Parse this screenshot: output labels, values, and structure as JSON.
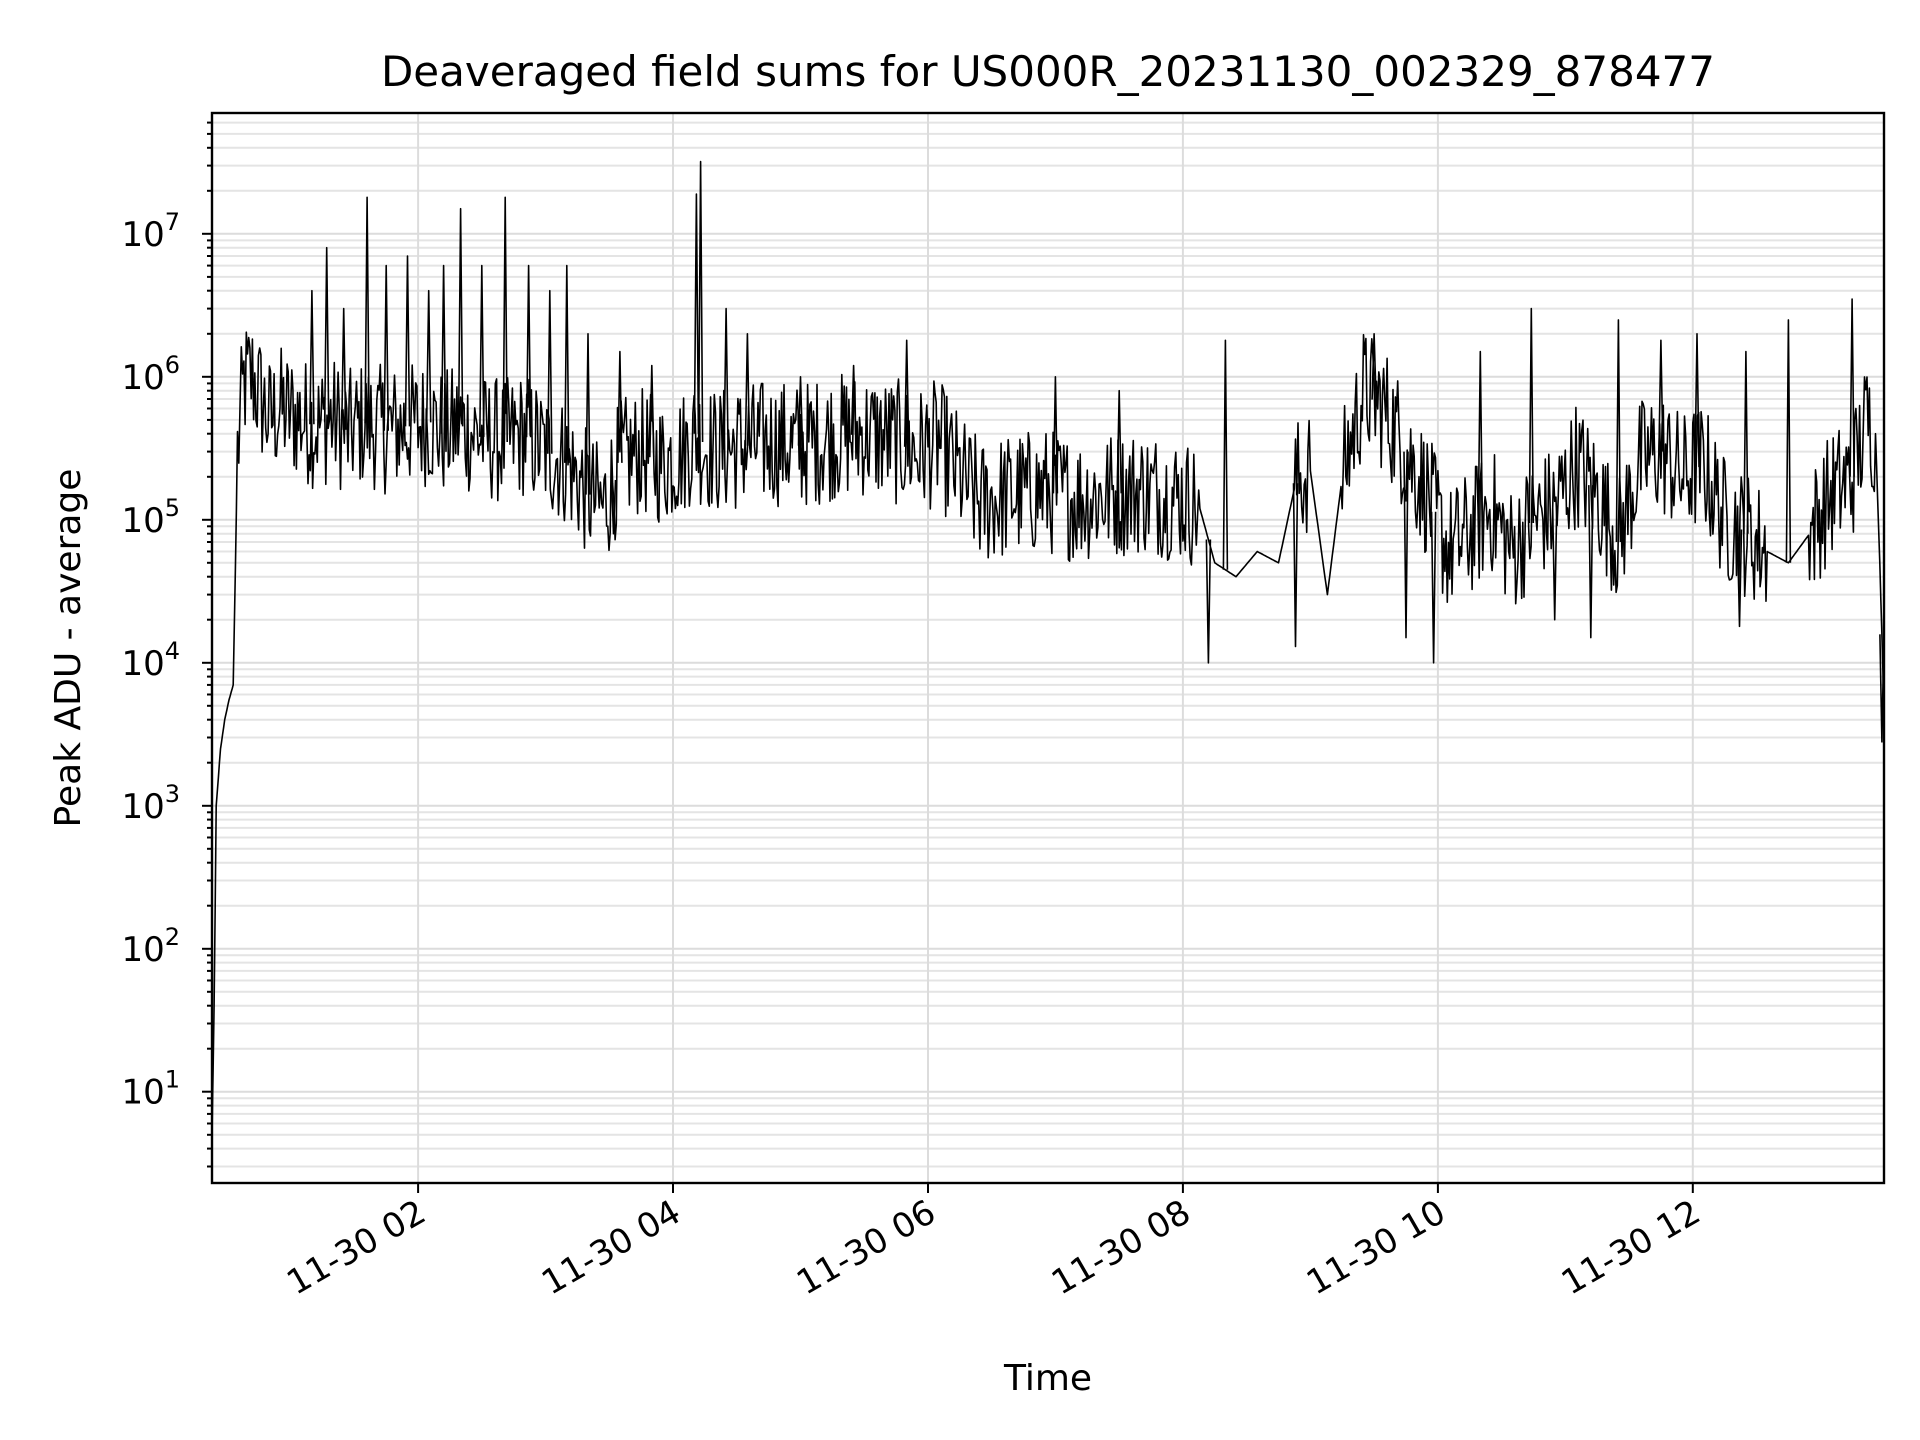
{
  "chart_data": {
    "type": "line",
    "title": "Deaveraged field sums for US000R_20231130_002329_878477",
    "xlabel": "Time",
    "ylabel": "Peak ADU - average",
    "y_scale": "log",
    "ylim": [
      2.3,
      70000000
    ],
    "xlim": [
      "11-30 00:23",
      "11-30 13:30"
    ],
    "x_ticks": [
      {
        "label": "11-30 02",
        "value": "11-30 02:00"
      },
      {
        "label": "11-30 04",
        "value": "11-30 04:00"
      },
      {
        "label": "11-30 06",
        "value": "11-30 06:00"
      },
      {
        "label": "11-30 08",
        "value": "11-30 08:00"
      },
      {
        "label": "11-30 10",
        "value": "11-30 10:00"
      },
      {
        "label": "11-30 12",
        "value": "11-30 12:00"
      }
    ],
    "y_ticks": [
      {
        "base": "10",
        "exp": "1",
        "value": 10
      },
      {
        "base": "10",
        "exp": "2",
        "value": 100
      },
      {
        "base": "10",
        "exp": "3",
        "value": 1000
      },
      {
        "base": "10",
        "exp": "4",
        "value": 10000
      },
      {
        "base": "10",
        "exp": "5",
        "value": 100000
      },
      {
        "base": "10",
        "exp": "6",
        "value": 1000000
      },
      {
        "base": "10",
        "exp": "7",
        "value": 10000000
      }
    ],
    "grid": true,
    "series": [
      {
        "color": "#000000",
        "x": [
          "11-30 00:23",
          "11-30 00:24",
          "11-30 00:25",
          "11-30 00:27",
          "11-30 00:29",
          "11-30 00:31",
          "11-30 00:33",
          "11-30 00:35",
          "11-30 00:38",
          "11-30 00:42",
          "11-30 00:46",
          "11-30 00:50",
          "11-30 00:55",
          "11-30 01:00",
          "11-30 01:06",
          "11-30 01:12",
          "11-30 01:20",
          "11-30 01:27",
          "11-30 01:35",
          "11-30 01:45",
          "11-30 01:55",
          "11-30 02:05",
          "11-30 02:12",
          "11-30 02:20",
          "11-30 02:30",
          "11-30 02:41",
          "11-30 02:50",
          "11-30 03:00",
          "11-30 03:10",
          "11-30 03:20",
          "11-30 03:27",
          "11-30 03:35",
          "11-30 03:45",
          "11-30 03:55",
          "11-30 04:05",
          "11-30 04:11",
          "11-30 04:13",
          "11-30 04:20",
          "11-30 04:30",
          "11-30 04:45",
          "11-30 05:00",
          "11-30 05:15",
          "11-30 05:30",
          "11-30 05:45",
          "11-30 05:55",
          "11-30 06:05",
          "11-30 06:15",
          "11-30 06:25",
          "11-30 06:40",
          "11-30 06:55",
          "11-30 07:10",
          "11-30 07:25",
          "11-30 07:40",
          "11-30 07:50",
          "11-30 08:00",
          "11-30 08:08",
          "11-30 08:15",
          "11-30 08:25",
          "11-30 08:35",
          "11-30 08:45",
          "11-30 08:53",
          "11-30 09:00",
          "11-30 09:08",
          "11-30 09:15",
          "11-30 09:25",
          "11-30 09:35",
          "11-30 09:45",
          "11-30 09:55",
          "11-30 10:05",
          "11-30 10:15",
          "11-30 10:25",
          "11-30 10:35",
          "11-30 10:45",
          "11-30 10:55",
          "11-30 11:05",
          "11-30 11:15",
          "11-30 11:25",
          "11-30 11:35",
          "11-30 11:45",
          "11-30 11:55",
          "11-30 12:05",
          "11-30 12:15",
          "11-30 12:25",
          "11-30 12:35",
          "11-30 12:45",
          "11-30 12:55",
          "11-30 13:05",
          "11-30 13:15",
          "11-30 13:22",
          "11-30 13:26",
          "11-30 13:28",
          "11-30 13:30"
        ],
        "values": [
          5,
          40,
          1000,
          2500,
          4000,
          5500,
          7000,
          300000,
          900000,
          1000000,
          700000,
          500000,
          600000,
          550000,
          500000,
          450000,
          500000,
          400000,
          480000,
          420000,
          450000,
          480000,
          400000,
          450000,
          380000,
          350000,
          400000,
          300000,
          250000,
          150000,
          120000,
          250000,
          300000,
          250000,
          300000,
          400000,
          350000,
          300000,
          320000,
          350000,
          330000,
          380000,
          400000,
          350000,
          300000,
          350000,
          200000,
          130000,
          150000,
          160000,
          140000,
          150000,
          160000,
          150000,
          140000,
          120000,
          50000,
          40000,
          60000,
          50000,
          180000,
          220000,
          30000,
          200000,
          800000,
          600000,
          300000,
          150000,
          60000,
          80000,
          120000,
          60000,
          100000,
          120000,
          250000,
          150000,
          70000,
          250000,
          300000,
          200000,
          250000,
          100000,
          80000,
          60000,
          50000,
          80000,
          150000,
          200000,
          500000,
          400000,
          50000,
          5000
        ]
      }
    ],
    "spikes": [
      {
        "x": "11-30 01:10",
        "value": 4000000
      },
      {
        "x": "11-30 01:17",
        "value": 8000000
      },
      {
        "x": "11-30 01:25",
        "value": 3000000
      },
      {
        "x": "11-30 01:36",
        "value": 18000000
      },
      {
        "x": "11-30 01:45",
        "value": 6000000
      },
      {
        "x": "11-30 01:55",
        "value": 7000000
      },
      {
        "x": "11-30 02:05",
        "value": 4000000
      },
      {
        "x": "11-30 02:12",
        "value": 6000000
      },
      {
        "x": "11-30 02:20",
        "value": 15000000
      },
      {
        "x": "11-30 02:30",
        "value": 6000000
      },
      {
        "x": "11-30 02:41",
        "value": 18000000
      },
      {
        "x": "11-30 02:52",
        "value": 6000000
      },
      {
        "x": "11-30 03:02",
        "value": 4000000
      },
      {
        "x": "11-30 03:10",
        "value": 6000000
      },
      {
        "x": "11-30 03:20",
        "value": 2000000
      },
      {
        "x": "11-30 03:35",
        "value": 1500000
      },
      {
        "x": "11-30 03:50",
        "value": 1200000
      },
      {
        "x": "11-30 04:11",
        "value": 19000000
      },
      {
        "x": "11-30 04:13",
        "value": 32000000
      },
      {
        "x": "11-30 04:25",
        "value": 3000000
      },
      {
        "x": "11-30 04:35",
        "value": 2000000
      },
      {
        "x": "11-30 05:00",
        "value": 1000000
      },
      {
        "x": "11-30 05:25",
        "value": 1200000
      },
      {
        "x": "11-30 05:50",
        "value": 1800000
      },
      {
        "x": "11-30 07:00",
        "value": 1000000
      },
      {
        "x": "11-30 07:30",
        "value": 800000
      },
      {
        "x": "11-30 08:20",
        "value": 1800000
      },
      {
        "x": "11-30 09:30",
        "value": 2000000
      },
      {
        "x": "11-30 10:20",
        "value": 1500000
      },
      {
        "x": "11-30 10:44",
        "value": 3000000
      },
      {
        "x": "11-30 11:25",
        "value": 2500000
      },
      {
        "x": "11-30 11:45",
        "value": 1800000
      },
      {
        "x": "11-30 12:02",
        "value": 2000000
      },
      {
        "x": "11-30 12:25",
        "value": 1500000
      },
      {
        "x": "11-30 12:45",
        "value": 2500000
      },
      {
        "x": "11-30 13:15",
        "value": 3500000
      }
    ],
    "dips": [
      {
        "x": "11-30 03:32",
        "value": 80000
      },
      {
        "x": "11-30 08:12",
        "value": 10000
      },
      {
        "x": "11-30 08:53",
        "value": 13000
      },
      {
        "x": "11-30 09:45",
        "value": 15000
      },
      {
        "x": "11-30 09:58",
        "value": 10000
      },
      {
        "x": "11-30 10:55",
        "value": 20000
      },
      {
        "x": "11-30 11:12",
        "value": 15000
      },
      {
        "x": "11-30 12:22",
        "value": 18000
      },
      {
        "x": "11-30 13:29",
        "value": 2800
      }
    ]
  }
}
